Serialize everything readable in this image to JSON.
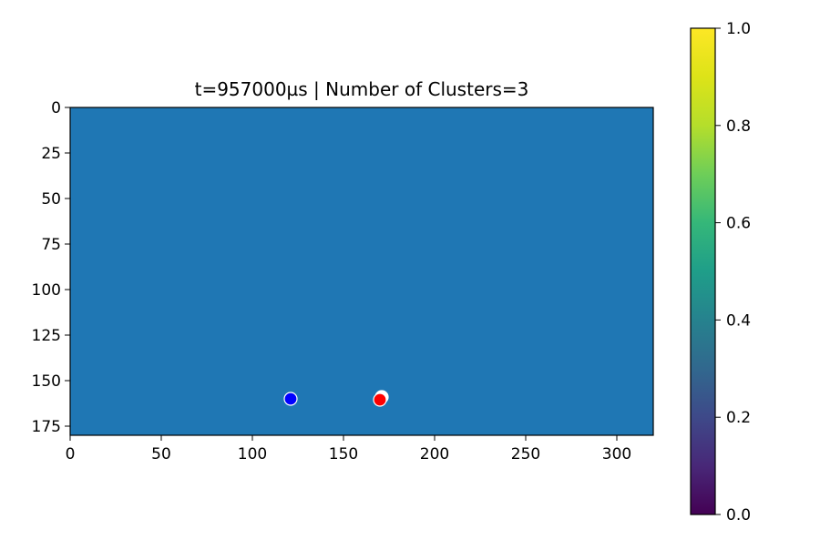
{
  "chart_data": {
    "type": "scatter",
    "title": "t=957000µs | Number of Clusters=3",
    "xlabel": "",
    "ylabel": "",
    "xlim": [
      0,
      320
    ],
    "ylim": [
      180,
      0
    ],
    "y_axis_inverted": true,
    "background_fill": "#1f77b4",
    "x_ticks": [
      0,
      50,
      100,
      150,
      200,
      250,
      300
    ],
    "y_ticks": [
      0,
      25,
      50,
      75,
      100,
      125,
      150,
      175
    ],
    "grid": false,
    "points": [
      {
        "x": 171,
        "y": 159,
        "color": "#ffffff"
      },
      {
        "x": 121,
        "y": 160,
        "color": "#0000ff"
      },
      {
        "x": 170,
        "y": 160.5,
        "color": "#ff0000"
      }
    ],
    "colorbar": {
      "colormap": "viridis",
      "range": [
        0.0,
        1.0
      ],
      "ticks": [
        "0.0",
        "0.2",
        "0.4",
        "0.6",
        "0.8",
        "1.0"
      ],
      "position": "right"
    }
  }
}
